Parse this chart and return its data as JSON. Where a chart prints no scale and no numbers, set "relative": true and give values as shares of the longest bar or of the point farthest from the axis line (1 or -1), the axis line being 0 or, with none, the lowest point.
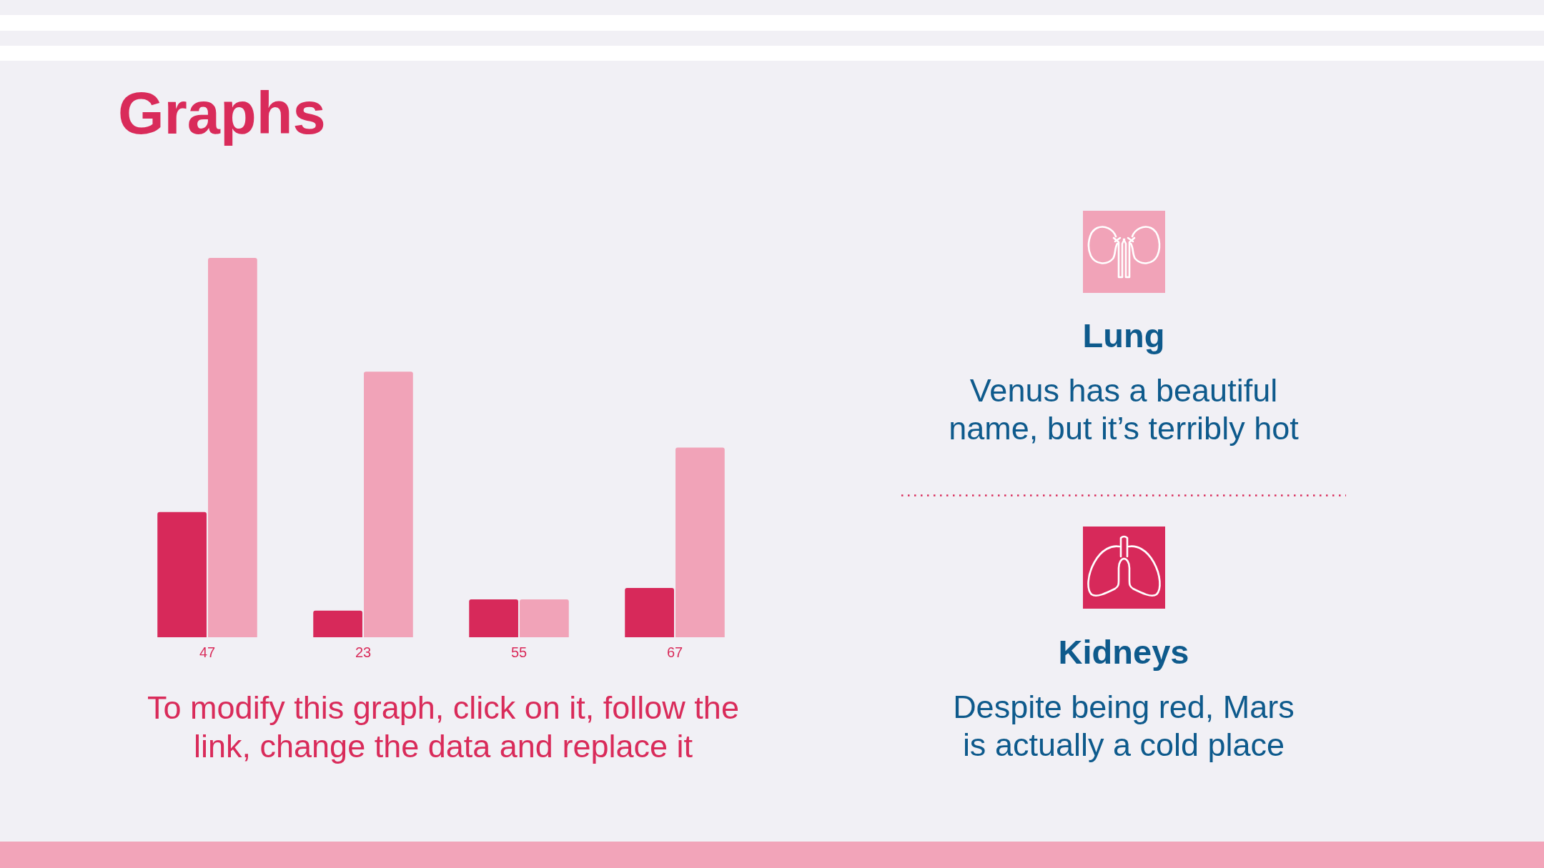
{
  "chart_data": [
    {
      "type": "bar",
      "title": "Graphs",
      "categories": [
        "47",
        "23",
        "55",
        "67"
      ],
      "series": [
        {
          "color": "#d7295a",
          "values": [
            0.33,
            0.07,
            0.1,
            0.13
          ]
        },
        {
          "color": "#f1a3b8",
          "values": [
            1,
            0.7,
            0.1,
            0.5
          ]
        }
      ],
      "relative": true,
      "annotations": [
        "To modify this graph, click on it, follow the link, change the data and replace it"
      ]
    },
    {
      "type": "other",
      "annotations": [
        "Lung",
        "Venus has a beautiful name, but it’s terribly hot",
        "Kidneys",
        "Despite being red, Mars is actually a cold place"
      ]
    }
  ]
}
